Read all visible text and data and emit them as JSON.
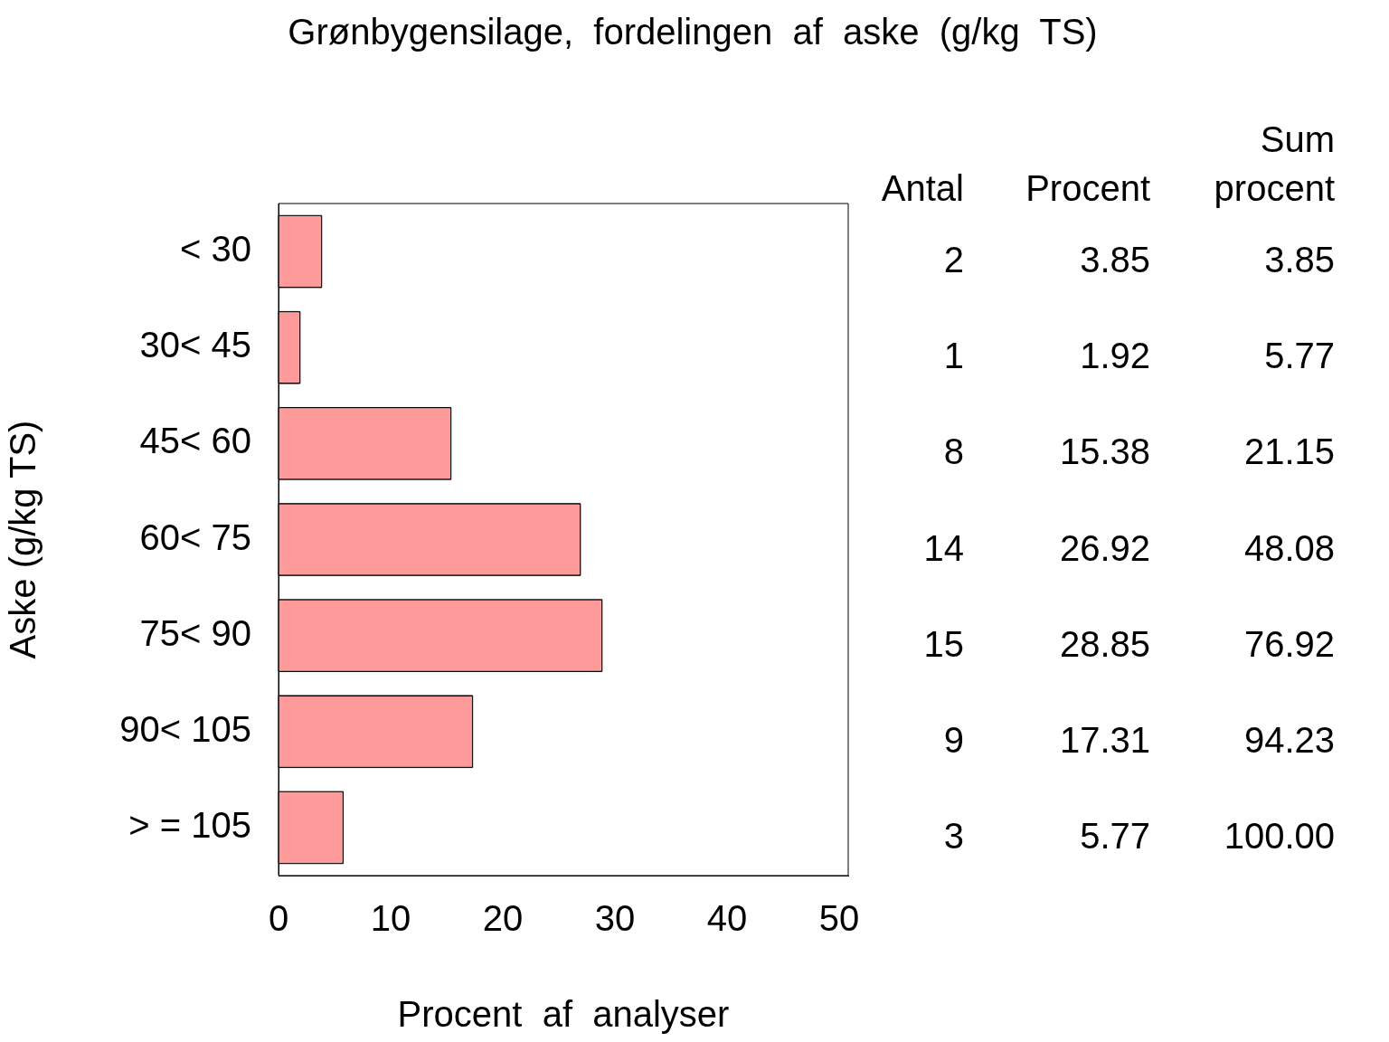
{
  "chart_data": {
    "type": "bar",
    "orientation": "horizontal",
    "title": "Grønbygensilage,  fordelingen  af  aske  (g/kg  TS)",
    "xlabel": "Procent  af  analyser",
    "ylabel": "Aske (g/kg TS)",
    "categories": [
      "< 30",
      "30< 45",
      "45< 60",
      "60< 75",
      "75< 90",
      "90< 105",
      "> = 105"
    ],
    "values": [
      3.85,
      1.92,
      15.38,
      26.92,
      28.85,
      17.31,
      5.77
    ],
    "color": "#ff9a9a",
    "data_labels": true,
    "xlim": [
      0,
      50.8
    ],
    "xticks": [
      0,
      10,
      20,
      30,
      40,
      50
    ],
    "grid": false,
    "legend": false,
    "annotations": [
      "Antal",
      "Procent",
      "Sum procent",
      "2",
      "1",
      "8",
      "14",
      "15",
      "9",
      "3",
      "3.85",
      "5.77",
      "21.15",
      "48.08",
      "76.92",
      "94.23",
      "100.00"
    ]
  }
}
